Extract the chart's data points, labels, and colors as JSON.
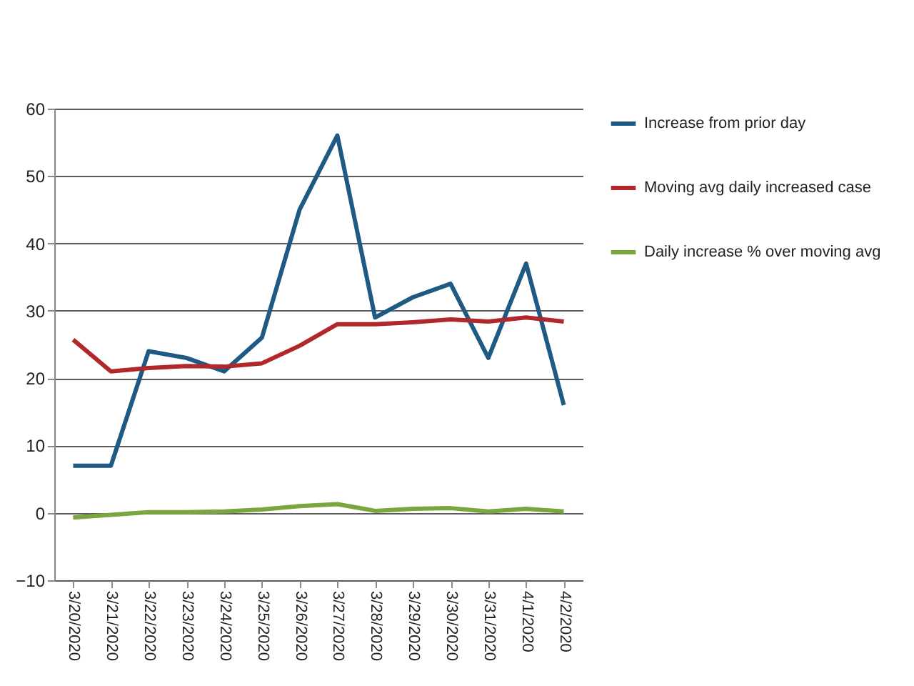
{
  "chart_data": {
    "type": "line",
    "categories": [
      "3/20/2020",
      "3/21/2020",
      "3/22/2020",
      "3/23/2020",
      "3/24/2020",
      "3/25/2020",
      "3/26/2020",
      "3/27/2020",
      "3/28/2020",
      "3/29/2020",
      "3/30/2020",
      "3/31/2020",
      "4/1/2020",
      "4/2/2020"
    ],
    "series": [
      {
        "name": "Increase from prior day",
        "color": "#1f5a85",
        "values": [
          7,
          7,
          24,
          23,
          21,
          26,
          45,
          56,
          29,
          32,
          34,
          23,
          37,
          16
        ]
      },
      {
        "name": "Moving avg daily increased case",
        "color": "#b0282a",
        "values": [
          25.7,
          21,
          21.5,
          21.8,
          21.7,
          22.2,
          24.8,
          28,
          28,
          28.3,
          28.7,
          28.4,
          29,
          28.4
        ]
      },
      {
        "name": "Daily increase % over moving avg",
        "color": "#7aa63e",
        "values": [
          -0.7,
          -0.3,
          0.1,
          0.1,
          0.2,
          0.5,
          1,
          1.3,
          0.3,
          0.6,
          0.7,
          0.2,
          0.6,
          0.2
        ]
      }
    ],
    "ylim": [
      -10,
      60
    ],
    "yticks": [
      -10,
      0,
      10,
      20,
      30,
      40,
      50,
      60
    ],
    "grid": "y",
    "legend": "right"
  }
}
